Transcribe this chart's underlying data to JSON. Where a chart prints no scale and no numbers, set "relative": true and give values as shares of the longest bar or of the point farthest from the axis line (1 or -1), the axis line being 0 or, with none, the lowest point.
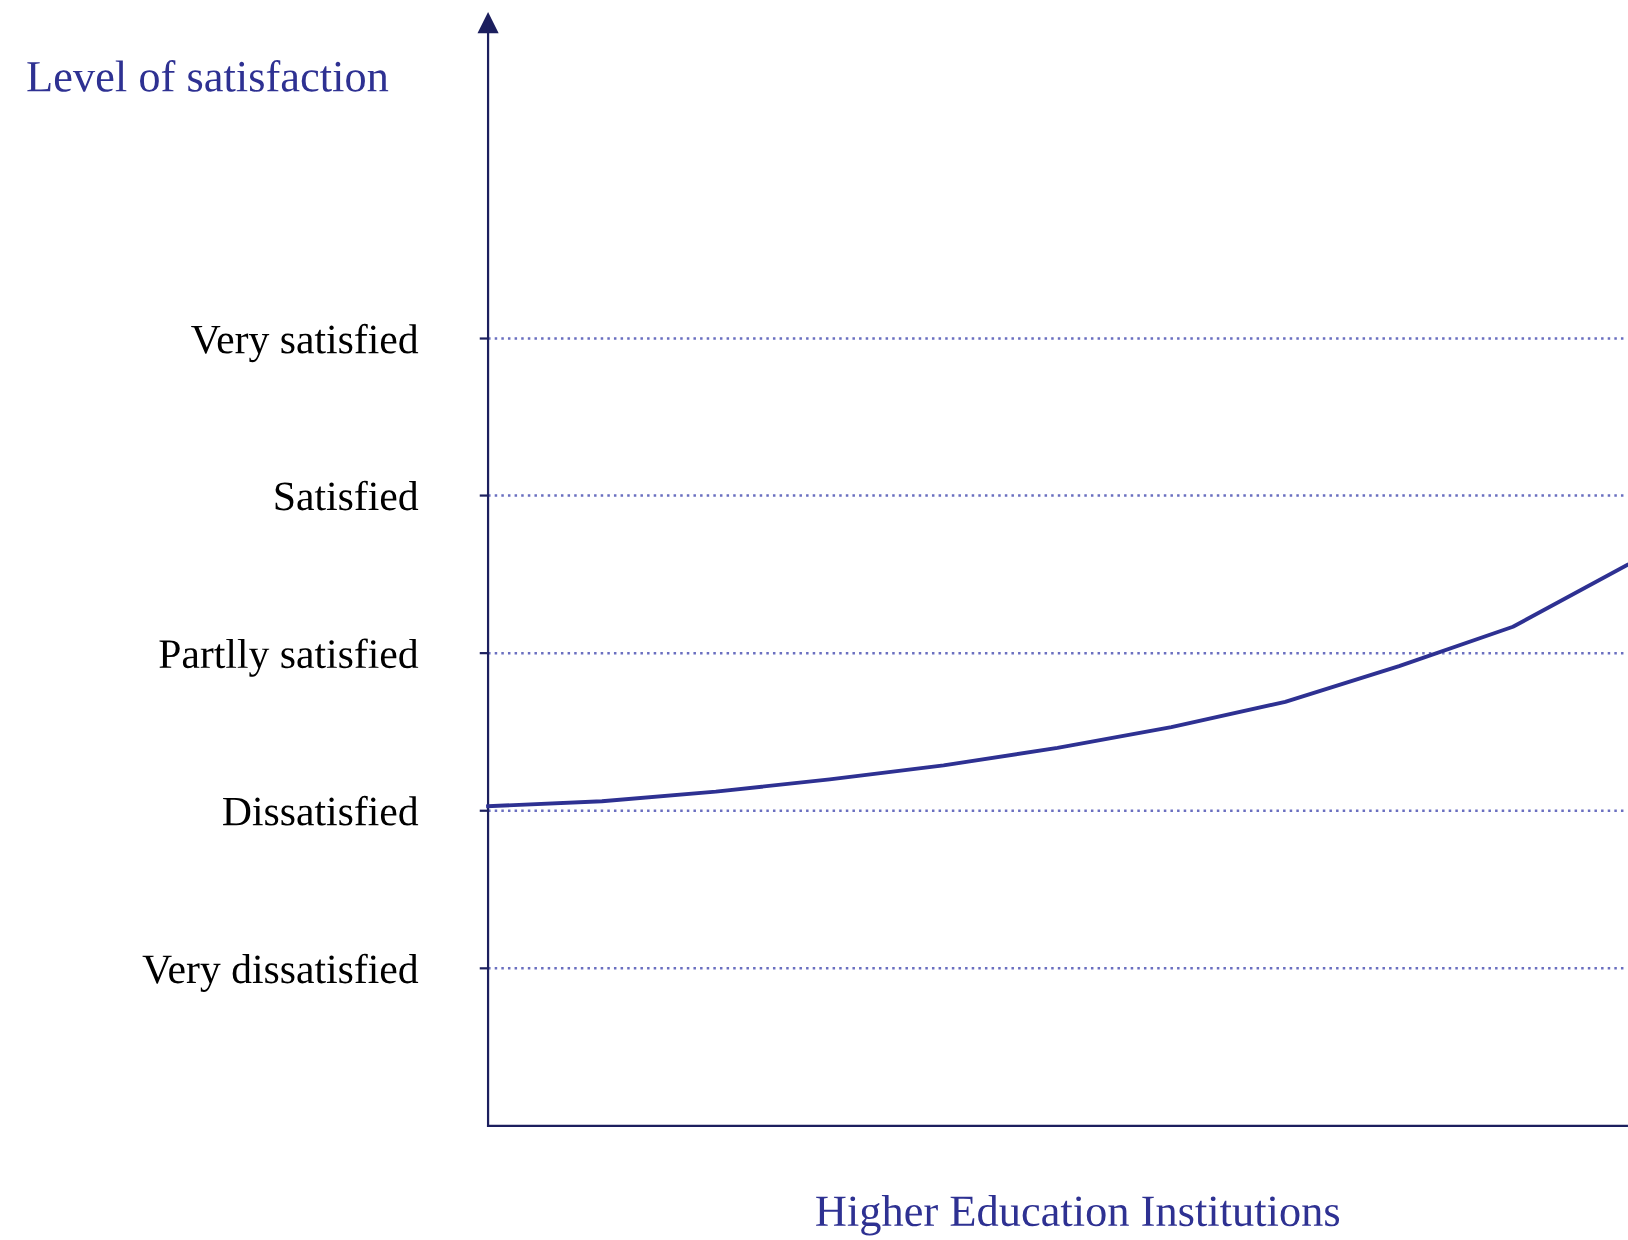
{
  "chart_data": {
    "type": "line",
    "relative": true,
    "title": "Level of satisfaction",
    "xlabel": "Higher Education Institutions",
    "categories": [
      null,
      null,
      null,
      null,
      null,
      null,
      null,
      null,
      null,
      null,
      null
    ],
    "series": [
      {
        "color": "#2e3192",
        "values": [
          0.57,
          0.579,
          0.596,
          0.618,
          0.643,
          0.674,
          0.711,
          0.756,
          0.82,
          0.89,
          1
        ]
      }
    ],
    "ref_lines": [
      {
        "axis": "y",
        "value": 0.281,
        "label": "Very dissatisfied",
        "color": "#6a6fc0",
        "line_style": "dotted"
      },
      {
        "axis": "y",
        "value": 0.562,
        "label": "Dissatisfied",
        "color": "#6a6fc0",
        "line_style": "dotted"
      },
      {
        "axis": "y",
        "value": 0.843,
        "label": "Partlly satisfied",
        "color": "#6a6fc0",
        "line_style": "dotted"
      },
      {
        "axis": "y",
        "value": 1.124,
        "label": "Satisfied",
        "color": "#6a6fc0",
        "line_style": "dotted"
      },
      {
        "axis": "y",
        "value": 1.404,
        "label": "Very satisfied",
        "color": "#6a6fc0",
        "line_style": "dotted"
      }
    ],
    "legend": false,
    "marker": "none",
    "line_style": "solid"
  }
}
